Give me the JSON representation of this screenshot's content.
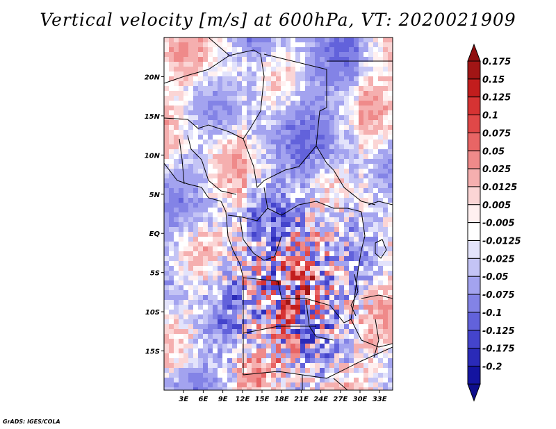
{
  "title": "Vertical velocity [m/s] at 600hPa, VT: 2020021909",
  "credit": "GrADS: IGES/COLA",
  "map": {
    "lon_labels": [
      "3E",
      "6E",
      "9E",
      "12E",
      "15E",
      "18E",
      "21E",
      "24E",
      "27E",
      "30E",
      "33E"
    ],
    "lat_labels": [
      "20N",
      "15N",
      "10N",
      "5N",
      "EQ",
      "5S",
      "10S",
      "15S"
    ],
    "lon_range": [
      0,
      35
    ],
    "lat_range": [
      -20,
      25
    ]
  },
  "colorbar": {
    "labels": [
      "0.175",
      "0.15",
      "0.125",
      "0.1",
      "0.075",
      "0.05",
      "0.025",
      "0.0125",
      "0.005",
      "-0.005",
      "-0.0125",
      "-0.025",
      "-0.05",
      "-0.075",
      "-0.1",
      "-0.125",
      "-0.175",
      "-0.2"
    ],
    "colors": [
      "#a11515",
      "#c21d1d",
      "#d63333",
      "#e04848",
      "#e86565",
      "#ef8a8a",
      "#f5afaf",
      "#fbd5d5",
      "#fff0f0",
      "#ffffff",
      "#e3e3fb",
      "#c4c4f5",
      "#a3a3ef",
      "#8383e6",
      "#6262db",
      "#4444cc",
      "#2a2ab8",
      "#1414a0"
    ],
    "top_arrow_color": "#8f0f0f",
    "bottom_arrow_color": "#0e0e8c"
  },
  "chart_data": {
    "type": "heatmap",
    "title": "Vertical velocity [m/s] at 600hPa, VT: 2020021909",
    "variable": "Vertical velocity",
    "units": "m/s",
    "level": "600hPa",
    "valid_time": "2020021909",
    "x_ticks": [
      "3E",
      "6E",
      "9E",
      "12E",
      "15E",
      "18E",
      "21E",
      "24E",
      "27E",
      "30E",
      "33E"
    ],
    "y_ticks": [
      "20N",
      "15N",
      "10N",
      "5N",
      "EQ",
      "5S",
      "10S",
      "15S"
    ],
    "color_levels": [
      -0.2,
      -0.175,
      -0.125,
      -0.1,
      -0.075,
      -0.05,
      -0.025,
      -0.0125,
      -0.005,
      0.005,
      0.0125,
      0.025,
      0.05,
      0.075,
      0.1,
      0.125,
      0.15,
      0.175
    ]
  }
}
